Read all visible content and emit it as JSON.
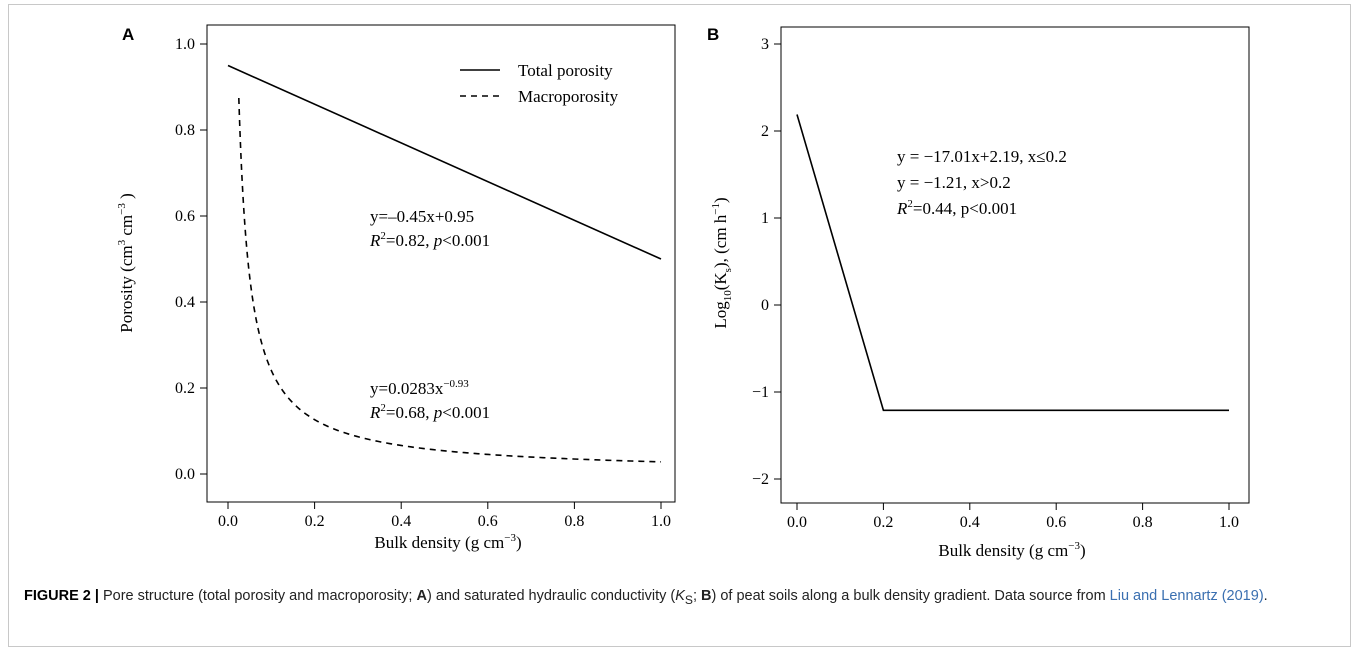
{
  "colors": {
    "line": "#000000",
    "caption_text": "#222222",
    "link": "#3a6fb0",
    "frame_border": "#c8c8c8"
  },
  "chart_data": [
    {
      "panel_label": "A",
      "type": "line",
      "xlabel_main": "Bulk density (g cm",
      "xlabel_exp": "−3",
      "xlabel_close": ")",
      "ylabel_main": "Porosity (cm",
      "ylabel_exp1": "3",
      "ylabel_mid": " cm",
      "ylabel_exp2": "−3",
      "ylabel_close": " )",
      "xlim": [
        0.0,
        1.0
      ],
      "ylim": [
        0.0,
        1.0
      ],
      "xticks": [
        "0.0",
        "0.2",
        "0.4",
        "0.6",
        "0.8",
        "1.0"
      ],
      "yticks": [
        "0.0",
        "0.2",
        "0.4",
        "0.6",
        "0.8",
        "1.0"
      ],
      "grid": false,
      "legend_position": "top-right",
      "series": [
        {
          "name": "Total porosity",
          "style": "solid",
          "model": "linear",
          "slope": -0.45,
          "intercept": 0.95,
          "x_start": 0.0,
          "x_end": 1.0
        },
        {
          "name": "Macroporosity",
          "style": "dashed",
          "model": "power",
          "coef": 0.0283,
          "exponent": -0.93,
          "x_start": 0.025,
          "x_end": 1.0
        }
      ],
      "annotations": {
        "total": {
          "eq": "y=–0.45x+0.95",
          "r2_lead": "R",
          "r2_sup": "2",
          "r2_rest": "=0.82, ",
          "p_lead": "p",
          "p_rest": "<0.001"
        },
        "macro": {
          "eq_base": "y=0.0283x",
          "eq_sup": "−0.93",
          "r2_lead": "R",
          "r2_sup": "2",
          "r2_rest": "=0.68, ",
          "p_lead": "p",
          "p_rest": "<0.001"
        }
      }
    },
    {
      "panel_label": "B",
      "type": "line",
      "xlabel_main": "Bulk density (g cm",
      "xlabel_exp": "−3",
      "xlabel_close": ")",
      "ylabel_main": "Log",
      "ylabel_sub": "10",
      "ylabel_paren": "(K",
      "ylabel_sub2": "s",
      "ylabel_mid": "), (cm h",
      "ylabel_exp": "−1",
      "ylabel_close": ")",
      "xlim": [
        -0.05,
        1.05
      ],
      "ylim": [
        -2.2,
        3.2
      ],
      "xticks": [
        "0.0",
        "0.2",
        "0.4",
        "0.6",
        "0.8",
        "1.0"
      ],
      "yticks": [
        "−2",
        "−1",
        "0",
        "1",
        "2",
        "3"
      ],
      "grid": false,
      "series": [
        {
          "model": "piecewise",
          "points": [
            [
              0.0,
              2.19
            ],
            [
              0.2,
              -1.21
            ],
            [
              1.0,
              -1.21
            ]
          ]
        }
      ],
      "annotations": {
        "line1": "y = −17.01x+2.19, x≤0.2",
        "line2": "y = −1.21, x>0.2",
        "r2_lead": "R",
        "r2_sup": "2",
        "r2_rest": "=0.44, p<0.001"
      }
    }
  ],
  "caption": {
    "label": "FIGURE 2 |",
    "t1": " Pore structure (total porosity and macroporosity; ",
    "b1": "A",
    "t2": ") and saturated hydraulic conductivity (",
    "ks_k": "K",
    "ks_s": "S",
    "t3": "; ",
    "b2": "B",
    "t4": ") of peat soils along a bulk density gradient. Data source from ",
    "link": "Liu and Lennartz (2019)",
    "t5": "."
  }
}
